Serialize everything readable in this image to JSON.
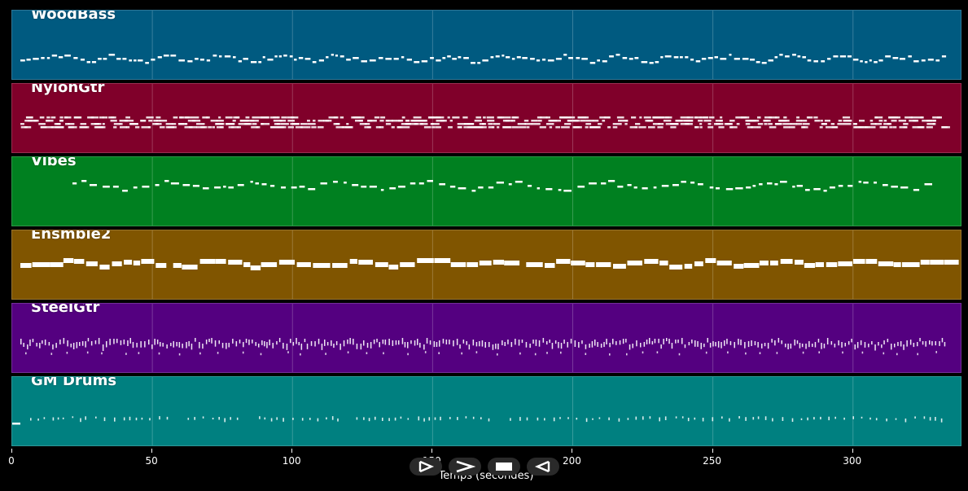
{
  "tracks": [
    {
      "name": "WoodBass",
      "color": "#005a80",
      "note_style": "bass"
    },
    {
      "name": "NylonGtr",
      "color": "#80002a",
      "note_style": "chords"
    },
    {
      "name": "Vibes",
      "color": "#008020",
      "note_style": "melody"
    },
    {
      "name": "Ensmble2",
      "color": "#805500",
      "note_style": "pad"
    },
    {
      "name": "SteelGtr",
      "color": "#540080",
      "note_style": "strum"
    },
    {
      "name": "GM Drums",
      "color": "#008080",
      "note_style": "drums"
    }
  ],
  "axis": {
    "label": "Temps (secondes)",
    "ticks": [
      "0",
      "50",
      "100",
      "150",
      "200",
      "250",
      "300"
    ],
    "tick_values": [
      0,
      50,
      100,
      150,
      200,
      250,
      300
    ],
    "range": [
      0,
      339
    ]
  },
  "transport": {
    "buttons": [
      {
        "name": "play-icon",
        "glyph": "play"
      },
      {
        "name": "forward-icon",
        "glyph": "forward"
      },
      {
        "name": "stop-icon",
        "glyph": "stop"
      },
      {
        "name": "rewind-icon",
        "glyph": "rewind"
      }
    ]
  }
}
